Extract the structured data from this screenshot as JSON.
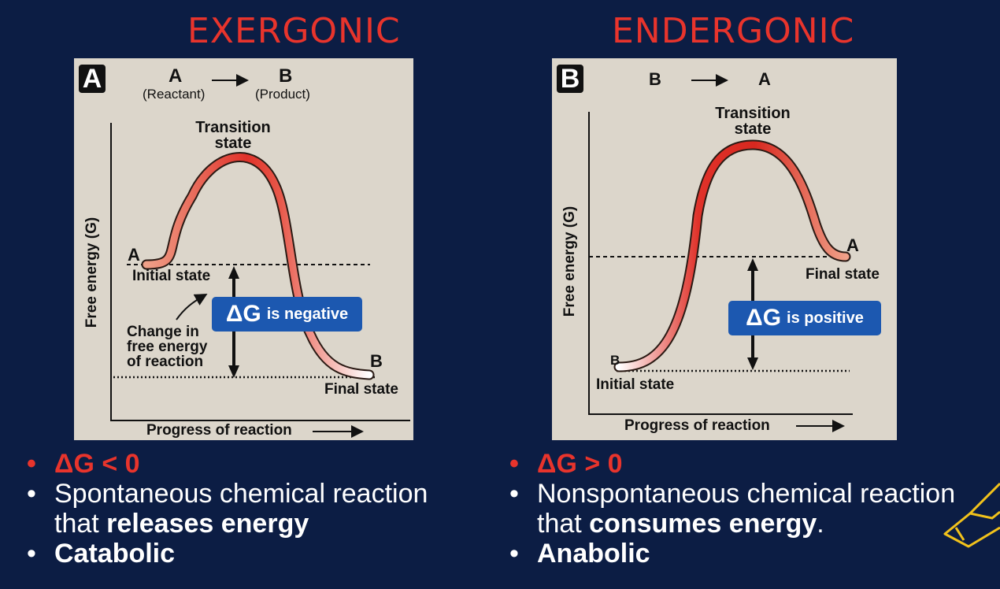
{
  "left": {
    "heading": "EXERGONIC",
    "badge": "A",
    "eq": {
      "from": "A",
      "from_sub": "(Reactant)",
      "to": "B",
      "to_sub": "(Product)"
    },
    "transition_label_1": "Transition",
    "transition_label_2": "state",
    "y_axis": "Free energy (G)",
    "x_axis": "Progress of reaction",
    "point_a": "A",
    "initial_state": "Initial state",
    "change_1": "Change in",
    "change_2": "free energy",
    "change_3": "of reaction",
    "dg_symbol": "ΔG",
    "dg_text": "is negative",
    "point_b": "B",
    "final_state": "Final state",
    "bullet_1": "ΔG < 0",
    "bullet_2_line1": "Spontaneous chemical reaction",
    "bullet_2_line2_pre": "that ",
    "bullet_2_line2_bold": "releases energy",
    "bullet_3": "Catabolic"
  },
  "right": {
    "heading": "ENDERGONIC",
    "badge": "B",
    "eq": {
      "from": "B",
      "to": "A"
    },
    "transition_label_1": "Transition",
    "transition_label_2": "state",
    "y_axis": "Free energy (G)",
    "x_axis": "Progress of reaction",
    "point_a": "A",
    "final_state": "Final state",
    "dg_symbol": "ΔG",
    "dg_text": "is positive",
    "point_b": "B",
    "initial_state": "Initial state",
    "bullet_1": "ΔG > 0",
    "bullet_2_line1": "Nonspontaneous chemical reaction",
    "bullet_2_line2_pre": "that ",
    "bullet_2_line2_bold": "consumes energy",
    "bullet_2_line2_post": ".",
    "bullet_3": "Anabolic"
  },
  "colors": {
    "background": "#0c1d44",
    "heading_red": "#e8342c",
    "panel": "#dcd6cb",
    "dg_box": "#1c58b0",
    "decor_yellow": "#f2c21b"
  },
  "icons": {
    "decoration": "rocket-outline-icon"
  }
}
